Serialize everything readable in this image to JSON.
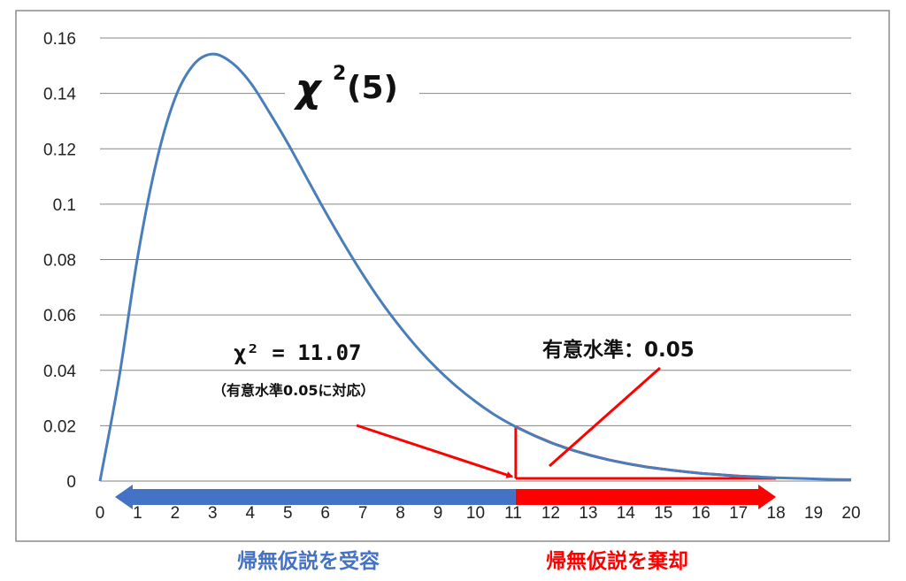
{
  "chart_data": {
    "type": "line",
    "title": "χ²(5)",
    "title_main": "χ",
    "title_sup": "2",
    "title_args": "(5)",
    "xlim": [
      0,
      20
    ],
    "ylim": [
      0,
      0.16
    ],
    "x_ticks": [
      "0",
      "1",
      "2",
      "3",
      "4",
      "5",
      "6",
      "7",
      "8",
      "9",
      "10",
      "11",
      "12",
      "13",
      "14",
      "15",
      "16",
      "17",
      "18",
      "19",
      "20"
    ],
    "y_ticks": [
      "0",
      "0.02",
      "0.04",
      "0.06",
      "0.08",
      "0.1",
      "0.12",
      "0.14",
      "0.16"
    ],
    "grid": "horizontal",
    "series": [
      {
        "x": [
          0,
          0.5,
          1,
          1.5,
          2,
          2.5,
          3,
          3.5,
          4,
          4.5,
          5,
          5.5,
          6,
          6.5,
          7,
          7.5,
          8,
          8.5,
          9,
          9.5,
          10,
          10.5,
          11,
          11.5,
          12,
          12.5,
          13,
          13.5,
          14,
          14.5,
          15,
          15.5,
          16,
          16.5,
          17,
          17.5,
          18,
          18.5,
          19,
          19.5,
          20
        ],
        "y": [
          0,
          0.0366,
          0.0807,
          0.1151,
          0.1383,
          0.1505,
          0.1542,
          0.1512,
          0.144,
          0.1334,
          0.122,
          0.1096,
          0.0973,
          0.0856,
          0.0746,
          0.0645,
          0.0555,
          0.0474,
          0.0403,
          0.0341,
          0.0287,
          0.024,
          0.0201,
          0.0168,
          0.0139,
          0.0115,
          0.0095,
          0.0078,
          0.0064,
          0.0052,
          0.0043,
          0.0035,
          0.0028,
          0.0023,
          0.0018,
          0.0015,
          0.0012,
          0.001,
          0.0008,
          0.0006,
          0.0005
        ],
        "color": "#4a7ebb"
      }
    ],
    "critical_value": 11.07,
    "arrow_end_x": 18
  },
  "annotations": {
    "critical_label": "χ² = 11.07",
    "critical_sub": "（有意水準0.05に対応）",
    "significance_label": "有意水準：0.05"
  },
  "bottom_labels": {
    "accept": "帰無仮説を受容",
    "reject": "帰無仮説を棄却"
  },
  "colors": {
    "accept": "#4472c4",
    "reject": "#ff0000",
    "curve": "#4a7ebb",
    "grid": "#868686"
  }
}
